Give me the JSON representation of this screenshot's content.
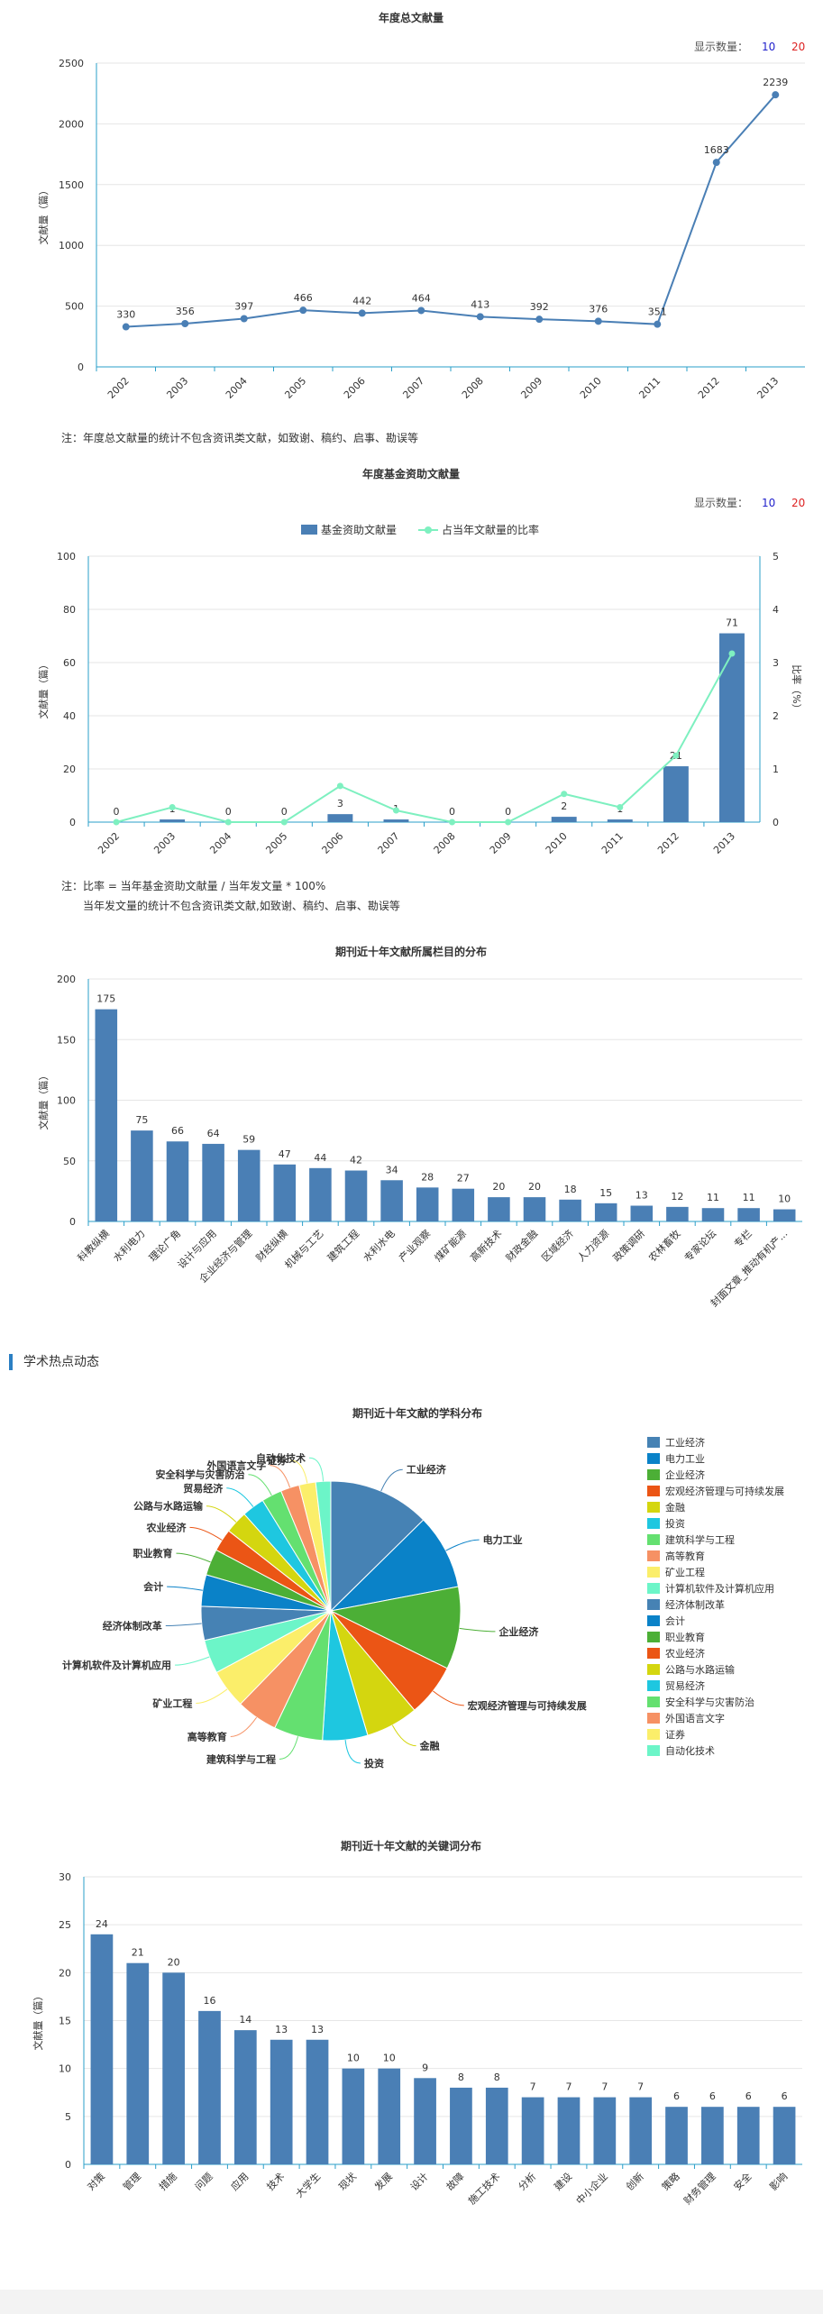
{
  "display_count": {
    "label": "显示数量：",
    "options": [
      "10",
      "20"
    ]
  },
  "section_hot": "学术热点动态",
  "notes": {
    "chart1": "注：年度总文献量的统计不包含资讯类文献，如致谢、稿约、启事、勘误等",
    "chart2_line1": "注：比率 = 当年基金资助文献量 / 当年发文量 * 100%",
    "chart2_line2": "当年发文量的统计不包含资讯类文献,如致谢、稿约、启事、勘误等"
  },
  "chart_data": [
    {
      "type": "line",
      "title": "年度总文献量",
      "ylabel": "文献量（篇）",
      "categories": [
        "2002",
        "2003",
        "2004",
        "2005",
        "2006",
        "2007",
        "2008",
        "2009",
        "2010",
        "2011",
        "2012",
        "2013"
      ],
      "values": [
        330,
        356,
        397,
        466,
        442,
        464,
        413,
        392,
        376,
        351,
        1683,
        2239
      ],
      "ylim": [
        0,
        2500
      ],
      "yticks": [
        0,
        500,
        1000,
        1500,
        2000,
        2500
      ],
      "grid": true,
      "color": "#4a7fb5"
    },
    {
      "type": "bar",
      "title": "年度基金资助文献量",
      "ylabel": "文献量（篇）",
      "y2label": "比率（%）",
      "categories": [
        "2002",
        "2003",
        "2004",
        "2005",
        "2006",
        "2007",
        "2008",
        "2009",
        "2010",
        "2011",
        "2012",
        "2013"
      ],
      "series": [
        {
          "name": "基金资助文献量",
          "kind": "bar",
          "color": "#4a7fb5",
          "values": [
            0,
            1,
            0,
            0,
            3,
            1,
            0,
            0,
            2,
            1,
            21,
            71
          ]
        },
        {
          "name": "占当年文献量的比率",
          "kind": "line",
          "color": "#7ef0c0",
          "values": [
            0,
            0.28,
            0,
            0,
            0.68,
            0.22,
            0,
            0,
            0.53,
            0.28,
            1.25,
            3.17
          ]
        }
      ],
      "ylim": [
        0,
        100
      ],
      "yticks": [
        0,
        20,
        40,
        60,
        80,
        100
      ],
      "y2lim": [
        0,
        5
      ],
      "y2ticks": [
        0,
        1,
        2,
        3,
        4,
        5
      ],
      "legend": "top-center"
    },
    {
      "type": "bar",
      "title": "期刊近十年文献所属栏目的分布",
      "ylabel": "文献量（篇）",
      "categories": [
        "科教纵横",
        "水利电力",
        "理论广角",
        "设计与应用",
        "企业经济与管理",
        "财经纵横",
        "机械与工艺",
        "建筑工程",
        "水利水电",
        "产业观察",
        "煤矿能源",
        "高新技术",
        "财政金融",
        "区域经济",
        "人力资源",
        "政策调研",
        "农林畜牧",
        "专家论坛",
        "专栏",
        "封面文章_推动有机产..."
      ],
      "values": [
        175,
        75,
        66,
        64,
        59,
        47,
        44,
        42,
        34,
        28,
        27,
        20,
        20,
        18,
        15,
        13,
        12,
        11,
        11,
        10
      ],
      "ylim": [
        0,
        200
      ],
      "yticks": [
        0,
        50,
        100,
        150,
        200
      ],
      "color": "#4a7fb5"
    },
    {
      "type": "pie",
      "title": "期刊近十年文献的学科分布",
      "labels": [
        "工业经济",
        "电力工业",
        "企业经济",
        "宏观经济管理与可持续发展",
        "金融",
        "投资",
        "建筑科学与工程",
        "高等教育",
        "矿业工程",
        "计算机软件及计算机应用",
        "经济体制改革",
        "会计",
        "职业教育",
        "农业经济",
        "公路与水路运输",
        "贸易经济",
        "安全科学与灾害防治",
        "外国语言文字",
        "证券",
        "自动化技术"
      ],
      "values": [
        13.5,
        10,
        11,
        7,
        7,
        6,
        6.5,
        5.5,
        5.2,
        4.5,
        4.5,
        4.2,
        3.5,
        3,
        3,
        3,
        2.7,
        2.5,
        2.2,
        2
      ],
      "colors": [
        "#4682b4",
        "#0a82c8",
        "#4caf36",
        "#eb5515",
        "#d4d60f",
        "#1ec7e0",
        "#64e070",
        "#f69164",
        "#fbee6a",
        "#6cf5c8",
        "#4682b4",
        "#0a82c8",
        "#4caf36",
        "#eb5515",
        "#d4d60f",
        "#1ec7e0",
        "#64e070",
        "#f69164",
        "#fbee6a",
        "#6cf5c8"
      ],
      "legend": "right"
    },
    {
      "type": "bar",
      "title": "期刊近十年文献的关键词分布",
      "ylabel": "文献量（篇）",
      "categories": [
        "对策",
        "管理",
        "措施",
        "问题",
        "应用",
        "技术",
        "大学生",
        "现状",
        "发展",
        "设计",
        "故障",
        "施工技术",
        "分析",
        "建设",
        "中小企业",
        "创新",
        "策略",
        "财务管理",
        "安全",
        "影响"
      ],
      "values": [
        24,
        21,
        20,
        16,
        14,
        13,
        13,
        10,
        10,
        9,
        8,
        8,
        7,
        7,
        7,
        7,
        6,
        6,
        6,
        6
      ],
      "ylim": [
        0,
        30
      ],
      "yticks": [
        0,
        5,
        10,
        15,
        20,
        25,
        30
      ],
      "color": "#4a7fb5"
    }
  ]
}
